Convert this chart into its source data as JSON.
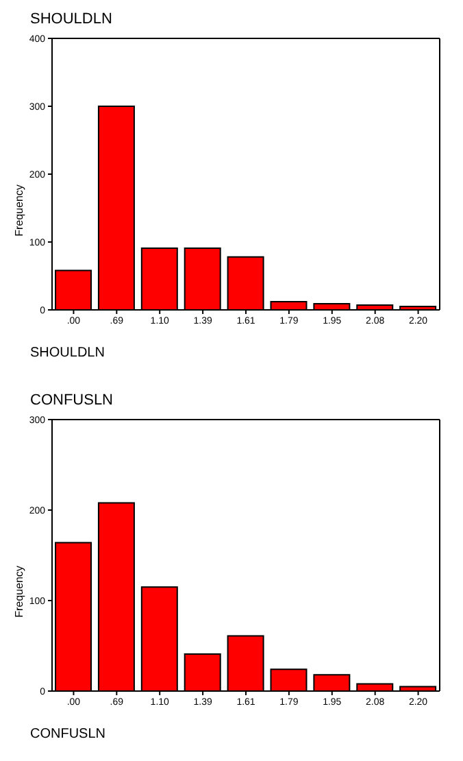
{
  "chart_data": [
    {
      "type": "bar",
      "title": "SHOULDLN",
      "xlabel": "SHOULDLN",
      "ylabel": "Frequency",
      "categories": [
        ".00",
        ".69",
        "1.10",
        "1.39",
        "1.61",
        "1.79",
        "1.95",
        "2.08",
        "2.20"
      ],
      "values": [
        58,
        300,
        91,
        91,
        78,
        12,
        9,
        7,
        5
      ],
      "color": "#ff0000",
      "ylim": [
        0,
        400
      ],
      "yticks": [
        0,
        100,
        200,
        300,
        400
      ],
      "grid": false
    },
    {
      "type": "bar",
      "title": "CONFUSLN",
      "xlabel": "CONFUSLN",
      "ylabel": "Frequency",
      "categories": [
        ".00",
        ".69",
        "1.10",
        "1.39",
        "1.61",
        "1.79",
        "1.95",
        "2.08",
        "2.20"
      ],
      "values": [
        164,
        208,
        115,
        41,
        61,
        24,
        18,
        8,
        5
      ],
      "color": "#ff0000",
      "ylim": [
        0,
        300
      ],
      "yticks": [
        0,
        100,
        200,
        300
      ],
      "grid": false
    }
  ]
}
